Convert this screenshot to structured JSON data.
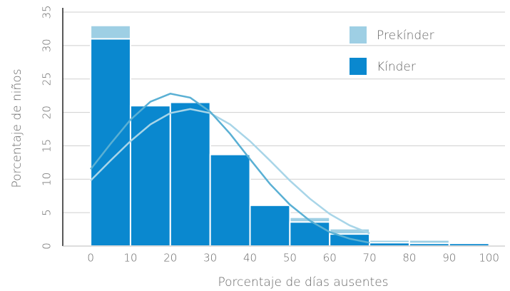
{
  "chart_data": {
    "type": "histogram",
    "x_label": "Porcentaje de días ausentes",
    "y_label": "Porcentaje de niños",
    "bins": [
      0,
      10,
      20,
      30,
      40,
      50,
      60,
      70,
      80,
      90,
      100
    ],
    "series": [
      {
        "name": "Prekínder",
        "color": "#9ecfe4",
        "values": [
          33,
          20.8,
          21.2,
          13.4,
          5.9,
          4.3,
          2.6,
          0.9,
          0.9,
          0.3
        ]
      },
      {
        "name": "Kínder",
        "color": "#0a88cf",
        "values": [
          31,
          21,
          21.5,
          13.7,
          6.1,
          3.6,
          1.8,
          0.5,
          0.4,
          0.4
        ]
      }
    ],
    "curves": [
      {
        "color": "#a8d5e8",
        "x": [
          0,
          5,
          10,
          15,
          20,
          25,
          30,
          35,
          40,
          45,
          50,
          55,
          60,
          65,
          70
        ],
        "values": [
          9.8,
          12.8,
          15.7,
          18.2,
          19.9,
          20.5,
          19.9,
          18.2,
          15.7,
          12.8,
          9.8,
          7.1,
          4.8,
          3.1,
          1.9
        ]
      },
      {
        "color": "#5ab0d4",
        "x": [
          0,
          5,
          10,
          15,
          20,
          25,
          30,
          35,
          40,
          45,
          50,
          55,
          60,
          65,
          70
        ],
        "values": [
          11.5,
          15.3,
          18.9,
          21.6,
          22.8,
          22.2,
          20.1,
          16.8,
          13,
          9.3,
          6.2,
          3.8,
          2.1,
          1.1,
          0.5
        ]
      }
    ],
    "xlim": [
      -7,
      104
    ],
    "ylim": [
      0,
      35
    ],
    "xticks": [
      0,
      10,
      20,
      30,
      40,
      50,
      60,
      70,
      80,
      90,
      100
    ],
    "yticks": [
      0,
      5,
      10,
      15,
      20,
      25,
      30,
      35
    ],
    "grid": true,
    "legend": "upper right"
  }
}
